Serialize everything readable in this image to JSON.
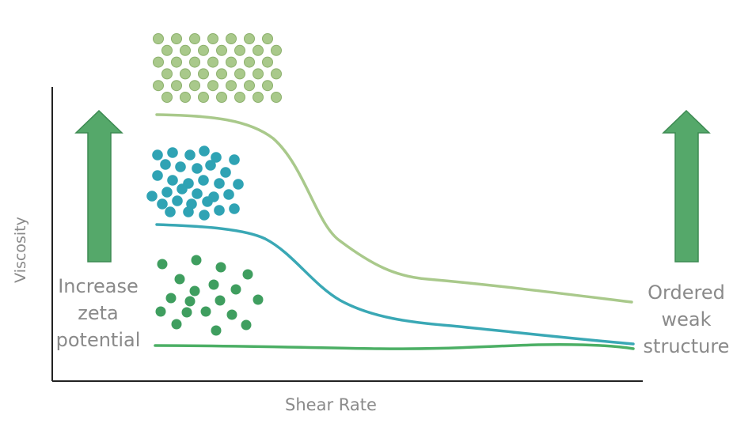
{
  "axes": {
    "ylabel": "Viscosity",
    "xlabel": "Shear Rate"
  },
  "annotations": {
    "left_lines": [
      "Increase",
      "zeta",
      "potential"
    ],
    "right_lines": [
      "Ordered",
      "weak",
      "structure"
    ]
  },
  "curves": [
    {
      "key": "light-green",
      "color": "#a9c98b"
    },
    {
      "key": "teal",
      "color": "#3aa8b5"
    },
    {
      "key": "green",
      "color": "#4caf65"
    }
  ],
  "colors": {
    "arrow": "#55a86a",
    "arrow_stroke": "#3d8a52",
    "axis": "#222222",
    "ordered_particles": "#a9c98b",
    "ordered_particles_stroke": "#8cb06c",
    "clustered_particles": "#2fa3b4",
    "dispersed_particles": "#3f9e5f"
  },
  "icons": {
    "left_arrow": "up-arrow-icon",
    "right_arrow": "up-arrow-icon"
  }
}
